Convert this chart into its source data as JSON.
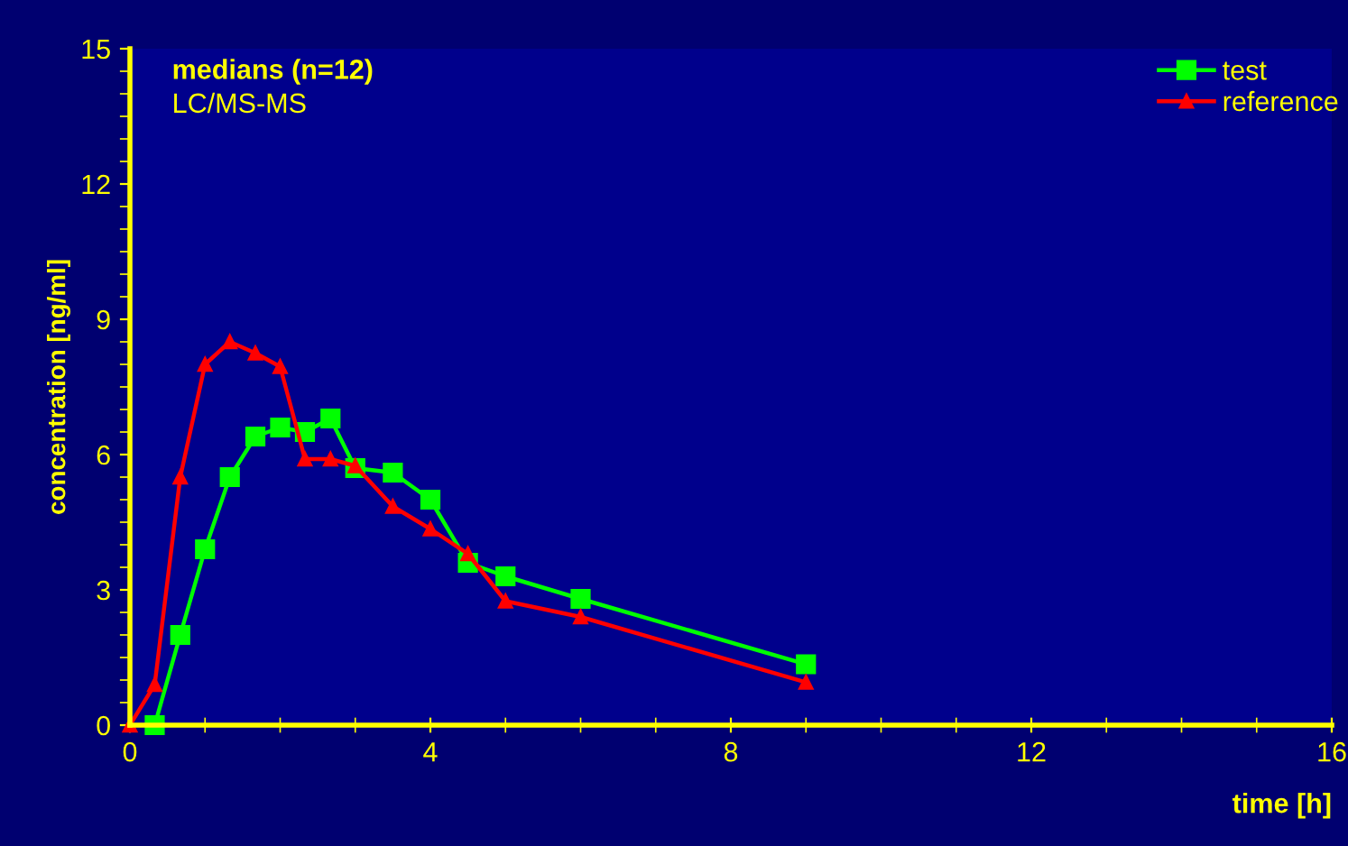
{
  "chart_data": {
    "type": "line",
    "xlabel": "time [h]",
    "ylabel": "concentration [ng/ml]",
    "annotations": [
      "medians (n=12)",
      "LC/MS-MS"
    ],
    "xlim": [
      0,
      16
    ],
    "xticks": [
      0,
      4,
      8,
      12,
      16
    ],
    "ylim": [
      0,
      15
    ],
    "yticks": [
      0,
      3,
      6,
      9,
      12,
      15
    ],
    "grid": false,
    "legend": "top right",
    "series": [
      {
        "name": "test",
        "color": "#00ff00",
        "marker": "square",
        "x": [
          0.33,
          0.67,
          1,
          1.33,
          1.67,
          2,
          2.33,
          2.67,
          3,
          3.5,
          4,
          4.5,
          5,
          6,
          9
        ],
        "values": [
          0,
          2.0,
          3.9,
          5.5,
          6.4,
          6.6,
          6.5,
          6.8,
          5.7,
          5.6,
          5.0,
          3.6,
          3.3,
          2.8,
          1.35
        ]
      },
      {
        "name": "reference",
        "color": "#ff0000",
        "marker": "triangle",
        "x": [
          0,
          0.33,
          0.67,
          1,
          1.33,
          1.67,
          2,
          2.33,
          2.67,
          3,
          3.5,
          4,
          4.5,
          5,
          6,
          9
        ],
        "values": [
          0,
          0.9,
          5.5,
          8.0,
          8.5,
          8.25,
          7.95,
          5.9,
          5.9,
          5.75,
          4.85,
          4.35,
          3.8,
          2.75,
          2.4,
          0.95
        ]
      }
    ]
  }
}
